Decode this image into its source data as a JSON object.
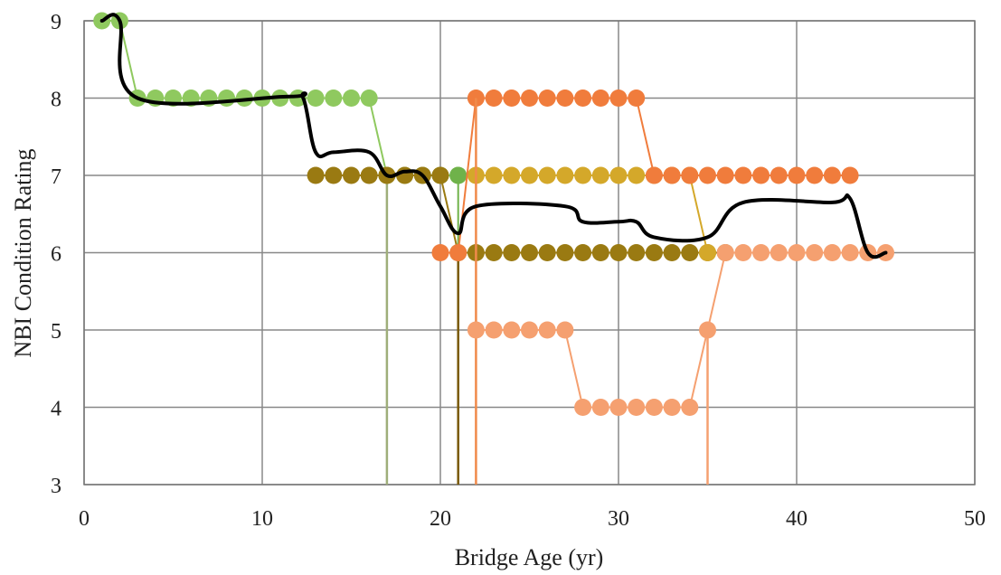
{
  "chart_data": {
    "type": "line",
    "xlabel": "Bridge Age (yr)",
    "ylabel": "NBI Condition Rating",
    "xlim": [
      0,
      50
    ],
    "ylim": [
      3,
      9
    ],
    "xticks": [
      0,
      10,
      20,
      30,
      40,
      50
    ],
    "yticks": [
      3,
      4,
      5,
      6,
      7,
      8,
      9
    ],
    "grid": true,
    "legend": "none",
    "series": [
      {
        "color": "#8fc95f",
        "markers": true,
        "points": [
          [
            1,
            9
          ],
          [
            2,
            9
          ],
          [
            3,
            8
          ],
          [
            4,
            8
          ],
          [
            5,
            8
          ],
          [
            6,
            8
          ],
          [
            7,
            8
          ],
          [
            8,
            8
          ],
          [
            9,
            8
          ],
          [
            10,
            8
          ],
          [
            11,
            8
          ],
          [
            12,
            8
          ],
          [
            13,
            8
          ],
          [
            14,
            8
          ],
          [
            15,
            8
          ],
          [
            16,
            8
          ],
          [
            17,
            7
          ],
          [
            18,
            7
          ],
          [
            19,
            7
          ],
          [
            20,
            7
          ],
          [
            21,
            7
          ]
        ]
      },
      {
        "color": "#6fb24a",
        "markers": true,
        "points": [
          [
            21,
            7
          ],
          [
            21,
            3
          ]
        ]
      },
      {
        "color": "#9fae7a",
        "markers": false,
        "points": [
          [
            17,
            7
          ],
          [
            17,
            3
          ]
        ]
      },
      {
        "color": "#9a7a12",
        "markers": true,
        "points": [
          [
            13,
            7
          ],
          [
            14,
            7
          ],
          [
            15,
            7
          ],
          [
            16,
            7
          ],
          [
            17,
            7
          ],
          [
            18,
            7
          ],
          [
            19,
            7
          ],
          [
            20,
            7
          ],
          [
            21,
            6
          ],
          [
            22,
            6
          ],
          [
            23,
            6
          ],
          [
            24,
            6
          ],
          [
            25,
            6
          ],
          [
            26,
            6
          ],
          [
            27,
            6
          ],
          [
            28,
            6
          ],
          [
            29,
            6
          ],
          [
            30,
            6
          ],
          [
            31,
            6
          ],
          [
            32,
            6
          ],
          [
            33,
            6
          ],
          [
            34,
            6
          ],
          [
            35,
            6
          ],
          [
            36,
            6
          ]
        ]
      },
      {
        "color": "#7a5a08",
        "markers": false,
        "points": [
          [
            21,
            6
          ],
          [
            21,
            3
          ]
        ]
      },
      {
        "color": "#d4a82a",
        "markers": true,
        "points": [
          [
            22,
            7
          ],
          [
            23,
            7
          ],
          [
            24,
            7
          ],
          [
            25,
            7
          ],
          [
            26,
            7
          ],
          [
            27,
            7
          ],
          [
            28,
            7
          ],
          [
            29,
            7
          ],
          [
            30,
            7
          ],
          [
            31,
            7
          ],
          [
            32,
            7
          ],
          [
            33,
            7
          ],
          [
            34,
            7
          ],
          [
            35,
            6
          ]
        ]
      },
      {
        "color": "#f07c3c",
        "markers": true,
        "points": [
          [
            20,
            6
          ],
          [
            21,
            6
          ],
          [
            22,
            8
          ],
          [
            23,
            8
          ],
          [
            24,
            8
          ],
          [
            25,
            8
          ],
          [
            26,
            8
          ],
          [
            27,
            8
          ],
          [
            28,
            8
          ],
          [
            29,
            8
          ],
          [
            30,
            8
          ],
          [
            31,
            8
          ],
          [
            32,
            7
          ],
          [
            33,
            7
          ],
          [
            34,
            7
          ],
          [
            35,
            7
          ],
          [
            36,
            7
          ],
          [
            37,
            7
          ],
          [
            38,
            7
          ],
          [
            39,
            7
          ],
          [
            40,
            7
          ],
          [
            41,
            7
          ],
          [
            42,
            7
          ],
          [
            43,
            7
          ]
        ]
      },
      {
        "color": "#f08a4a",
        "markers": false,
        "points": [
          [
            22,
            8
          ],
          [
            22,
            3
          ]
        ]
      },
      {
        "color": "#f5a070",
        "markers": true,
        "points": [
          [
            22,
            5
          ],
          [
            23,
            5
          ],
          [
            24,
            5
          ],
          [
            25,
            5
          ],
          [
            26,
            5
          ],
          [
            27,
            5
          ],
          [
            28,
            4
          ],
          [
            29,
            4
          ],
          [
            30,
            4
          ],
          [
            31,
            4
          ],
          [
            32,
            4
          ],
          [
            33,
            4
          ],
          [
            34,
            4
          ],
          [
            35,
            5
          ],
          [
            36,
            6
          ],
          [
            37,
            6
          ],
          [
            38,
            6
          ],
          [
            39,
            6
          ],
          [
            40,
            6
          ],
          [
            41,
            6
          ],
          [
            42,
            6
          ],
          [
            43,
            6
          ],
          [
            44,
            6
          ],
          [
            45,
            6
          ]
        ]
      },
      {
        "color": "#f5a070",
        "markers": false,
        "points": [
          [
            35,
            5
          ],
          [
            35,
            3
          ]
        ]
      },
      {
        "color": "#000000",
        "markers": false,
        "smooth": true,
        "points": [
          [
            1,
            9
          ],
          [
            2,
            9
          ],
          [
            3,
            8
          ],
          [
            11.5,
            8.02
          ],
          [
            12.3,
            8
          ],
          [
            13,
            7.3
          ],
          [
            14,
            7.3
          ],
          [
            16,
            7.3
          ],
          [
            17,
            7.0
          ],
          [
            18,
            7.05
          ],
          [
            19,
            7.0
          ],
          [
            20,
            6.6
          ],
          [
            21,
            6.25
          ],
          [
            22,
            6.6
          ],
          [
            27,
            6.6
          ],
          [
            28,
            6.4
          ],
          [
            30,
            6.4
          ],
          [
            31,
            6.4
          ],
          [
            32,
            6.2
          ],
          [
            35,
            6.2
          ],
          [
            37,
            6.65
          ],
          [
            42,
            6.65
          ],
          [
            43,
            6.7
          ],
          [
            44,
            6.0
          ],
          [
            45,
            6.0
          ]
        ]
      }
    ]
  }
}
